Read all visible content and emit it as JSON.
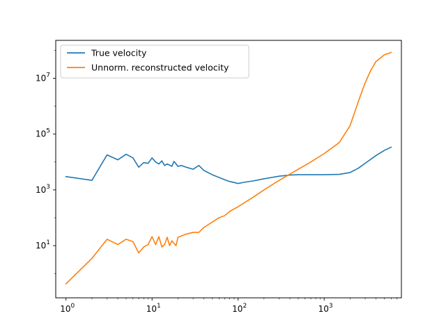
{
  "chart_data": {
    "type": "line",
    "title": "",
    "xlabel": "",
    "ylabel": "",
    "xscale": "log",
    "yscale": "log",
    "xlim": [
      0.76,
      7900
    ],
    "ylim": [
      0.135,
      230000000
    ],
    "grid": false,
    "legend_position": "top-left",
    "x_ticks": [
      {
        "value": 1,
        "base": "10",
        "exp": "0"
      },
      {
        "value": 10,
        "base": "10",
        "exp": "1"
      },
      {
        "value": 100,
        "base": "10",
        "exp": "2"
      },
      {
        "value": 1000,
        "base": "10",
        "exp": "3"
      }
    ],
    "y_ticks": [
      {
        "value": 10,
        "base": "10",
        "exp": "1"
      },
      {
        "value": 1000,
        "base": "10",
        "exp": "3"
      },
      {
        "value": 100000,
        "base": "10",
        "exp": "5"
      },
      {
        "value": 10000000,
        "base": "10",
        "exp": "7"
      }
    ],
    "series": [
      {
        "name": "True velocity",
        "color": "#1f77b4",
        "points": [
          [
            1,
            3000
          ],
          [
            2,
            2200
          ],
          [
            3,
            18000
          ],
          [
            4,
            12000
          ],
          [
            5,
            19000
          ],
          [
            6,
            14000
          ],
          [
            7,
            6500
          ],
          [
            8,
            9500
          ],
          [
            9,
            9000
          ],
          [
            10,
            14000
          ],
          [
            11,
            10000
          ],
          [
            12,
            8500
          ],
          [
            13,
            11000
          ],
          [
            14,
            7500
          ],
          [
            15,
            8500
          ],
          [
            17,
            7000
          ],
          [
            18,
            10500
          ],
          [
            20,
            7000
          ],
          [
            22,
            7500
          ],
          [
            25,
            6500
          ],
          [
            30,
            5500
          ],
          [
            35,
            7500
          ],
          [
            40,
            5000
          ],
          [
            50,
            3500
          ],
          [
            60,
            2800
          ],
          [
            70,
            2300
          ],
          [
            80,
            2000
          ],
          [
            100,
            1700
          ],
          [
            120,
            1900
          ],
          [
            150,
            2100
          ],
          [
            200,
            2500
          ],
          [
            300,
            3100
          ],
          [
            400,
            3400
          ],
          [
            500,
            3500
          ],
          [
            700,
            3500
          ],
          [
            1000,
            3500
          ],
          [
            1500,
            3600
          ],
          [
            2000,
            4200
          ],
          [
            2500,
            6000
          ],
          [
            3000,
            9000
          ],
          [
            4000,
            17000
          ],
          [
            5000,
            26000
          ],
          [
            6000,
            34000
          ]
        ]
      },
      {
        "name": "Unnorm. reconstructed velocity",
        "color": "#ff7f0e",
        "points": [
          [
            1,
            0.43
          ],
          [
            2,
            3.5
          ],
          [
            3,
            17
          ],
          [
            4,
            11
          ],
          [
            5,
            17
          ],
          [
            6,
            14
          ],
          [
            7,
            5.5
          ],
          [
            8,
            9
          ],
          [
            9,
            11
          ],
          [
            10,
            21
          ],
          [
            11,
            11
          ],
          [
            12,
            21
          ],
          [
            13,
            9
          ],
          [
            14,
            11
          ],
          [
            15,
            20
          ],
          [
            16,
            10
          ],
          [
            17,
            15
          ],
          [
            18,
            12
          ],
          [
            19,
            10
          ],
          [
            20,
            20
          ],
          [
            25,
            26
          ],
          [
            30,
            30
          ],
          [
            35,
            30
          ],
          [
            40,
            45
          ],
          [
            50,
            70
          ],
          [
            60,
            100
          ],
          [
            70,
            120
          ],
          [
            80,
            170
          ],
          [
            100,
            250
          ],
          [
            150,
            550
          ],
          [
            200,
            1000
          ],
          [
            300,
            2200
          ],
          [
            500,
            5500
          ],
          [
            700,
            10000
          ],
          [
            1000,
            20000
          ],
          [
            1500,
            50000
          ],
          [
            2000,
            200000
          ],
          [
            2500,
            1500000
          ],
          [
            3000,
            7000000
          ],
          [
            3500,
            20000000
          ],
          [
            4000,
            40000000
          ],
          [
            5000,
            70000000
          ],
          [
            6000,
            85000000
          ]
        ]
      }
    ]
  }
}
